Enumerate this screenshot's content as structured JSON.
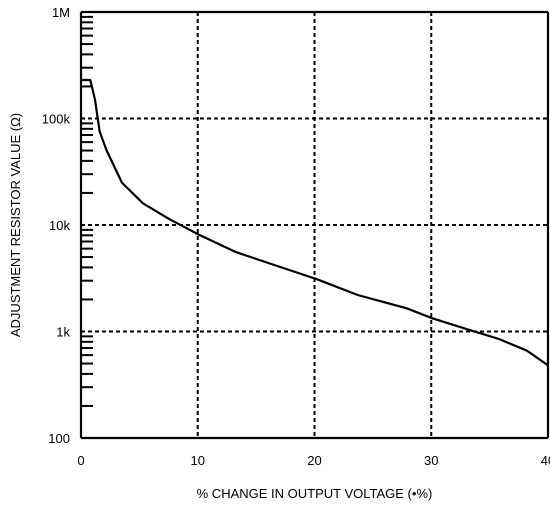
{
  "chart_data": {
    "type": "line",
    "title": "",
    "xlabel": "% CHANGE IN OUTPUT VOLTAGE (•%)",
    "ylabel": "ADJUSTMENT RESISTOR VALUE (Ω)",
    "xlim": [
      0,
      40
    ],
    "ylim": [
      100,
      1000000
    ],
    "yscale": "log",
    "x_ticks": [
      0,
      10,
      20,
      30,
      40
    ],
    "x_tick_labels": [
      "0",
      "10",
      "20",
      "30",
      "40"
    ],
    "y_ticks": [
      100,
      1000,
      10000,
      100000,
      1000000
    ],
    "y_tick_labels": [
      "100",
      "1k",
      "10k",
      "100k",
      "1M"
    ],
    "grid": "dashed",
    "legend": "none",
    "series": [
      {
        "x": [
          0,
          0.8,
          1.2,
          1.6,
          2.2,
          3.5,
          5.3,
          7.6,
          10.2,
          13.2,
          16.3,
          20.2,
          23.7,
          27.9,
          30.1,
          33.3,
          35.8,
          38.2,
          40
        ],
        "y": [
          230000,
          230000,
          150000,
          75000,
          50000,
          25000,
          16000,
          11300,
          8000,
          5600,
          4300,
          3100,
          2200,
          1650,
          1330,
          1030,
          850,
          660,
          480
        ]
      }
    ]
  }
}
